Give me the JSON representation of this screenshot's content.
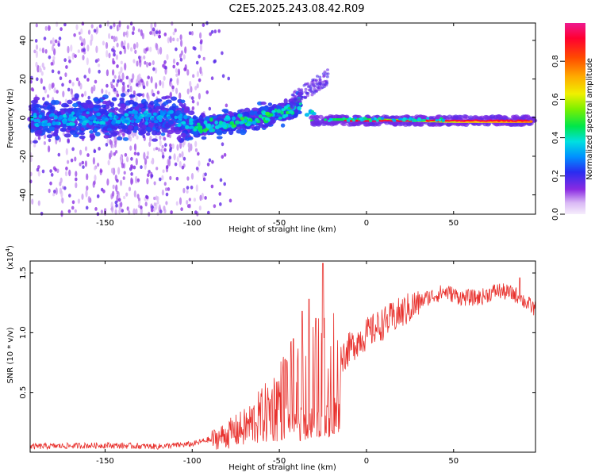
{
  "title": "C2E5.2025.243.08.42.R09",
  "chart_data": [
    {
      "type": "heatmap",
      "name": "spectrogram",
      "xlabel": "Height of straight line (km)",
      "ylabel": "Frequency (Hz)",
      "xlim": [
        -193,
        97
      ],
      "ylim": [
        -50,
        49
      ],
      "xticks": [
        -150,
        -100,
        -50,
        0,
        50
      ],
      "yticks": [
        -40,
        -20,
        0,
        20,
        40
      ],
      "ridge": [
        {
          "x": -190,
          "y": -1
        },
        {
          "x": -150,
          "y": 0
        },
        {
          "x": -110,
          "y": 0
        },
        {
          "x": -97,
          "y": -5
        },
        {
          "x": -75,
          "y": -2
        },
        {
          "x": -45,
          "y": 3
        },
        {
          "x": -38,
          "y": 8
        },
        {
          "x": -30,
          "y": -1
        },
        {
          "x": 0,
          "y": -1
        },
        {
          "x": 50,
          "y": -2
        },
        {
          "x": 95,
          "y": -2
        }
      ],
      "colorbar": {
        "label": "Normalized spectral amplitude",
        "range": [
          0,
          1
        ],
        "ticks": [
          0.0,
          0.2,
          0.4,
          0.6,
          0.8
        ],
        "tick_labels": [
          "0.0",
          "0.2",
          "0.4",
          "0.6",
          "0.8"
        ]
      }
    },
    {
      "type": "line",
      "name": "snr",
      "xlabel": "Height of straight line (km)",
      "ylabel": "SNR (10 * v/v)",
      "scale_label": "(x10",
      "scale_exp": "4",
      "scale_close": ")",
      "xlim": [
        -193,
        97
      ],
      "ylim": [
        0,
        1.6
      ],
      "xticks": [
        -150,
        -100,
        -50,
        0,
        50
      ],
      "yticks": [
        0.5,
        1.0,
        1.5
      ],
      "ytick_labels": [
        "0.5",
        "1.0",
        "1.5"
      ],
      "color": "#e8302c",
      "envelope": [
        {
          "x": -193,
          "y": 0.05
        },
        {
          "x": -150,
          "y": 0.06
        },
        {
          "x": -120,
          "y": 0.05
        },
        {
          "x": -100,
          "y": 0.07
        },
        {
          "x": -85,
          "y": 0.13
        },
        {
          "x": -70,
          "y": 0.22
        },
        {
          "x": -55,
          "y": 0.38
        },
        {
          "x": -45,
          "y": 0.55
        },
        {
          "x": -35,
          "y": 0.65
        },
        {
          "x": -25,
          "y": 0.7
        },
        {
          "x": -15,
          "y": 0.8
        },
        {
          "x": -5,
          "y": 0.95
        },
        {
          "x": 5,
          "y": 1.05
        },
        {
          "x": 20,
          "y": 1.18
        },
        {
          "x": 35,
          "y": 1.3
        },
        {
          "x": 45,
          "y": 1.35
        },
        {
          "x": 55,
          "y": 1.3
        },
        {
          "x": 65,
          "y": 1.3
        },
        {
          "x": 75,
          "y": 1.36
        },
        {
          "x": 85,
          "y": 1.33
        },
        {
          "x": 97,
          "y": 1.2
        }
      ],
      "peaks": [
        {
          "x": -25,
          "y": 1.58
        },
        {
          "x": -33,
          "y": 1.28
        },
        {
          "x": -37,
          "y": 1.18
        },
        {
          "x": -29,
          "y": 1.12
        },
        {
          "x": -42,
          "y": 0.95
        },
        {
          "x": 88,
          "y": 1.46
        }
      ]
    }
  ]
}
